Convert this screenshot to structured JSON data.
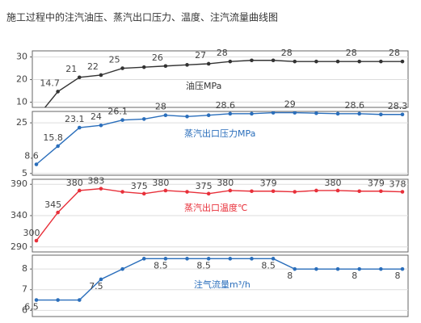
{
  "title": "施工过程中的注汽油压、蒸汽出口压力、温度、注汽流量曲线图",
  "chart_data": [
    {
      "type": "line",
      "ylim": [
        7.7,
        32.7
      ],
      "yticks": [
        10,
        20,
        30
      ],
      "grid": true,
      "series": [
        {
          "name": "油压MPa",
          "color": "#333333",
          "values": [
            3,
            14.7,
            21,
            22,
            25,
            25.5,
            26,
            26.5,
            27,
            28,
            28.5,
            28.5,
            28,
            28,
            28,
            28,
            28,
            28
          ],
          "value_labels": [
            null,
            "14.7",
            "21",
            "22",
            "25",
            null,
            "26",
            null,
            "27",
            "28",
            null,
            null,
            "28",
            null,
            null,
            "28",
            null,
            "28"
          ]
        }
      ]
    },
    {
      "type": "line",
      "ylim": [
        4.3,
        29.5
      ],
      "yticks": [
        5,
        25
      ],
      "grid": true,
      "series": [
        {
          "name": "蒸汽出口压力MPa",
          "color": "#2a6ebb",
          "values": [
            8.6,
            15.8,
            23.1,
            24,
            26.1,
            26.5,
            28,
            27.5,
            28,
            28.6,
            28.6,
            29,
            29,
            28.8,
            28.6,
            28.6,
            28.3,
            28.3
          ],
          "value_labels": [
            "8.6",
            "15.8",
            "23.1",
            "24",
            "26.1",
            null,
            "28",
            null,
            null,
            "28.6",
            null,
            null,
            "29",
            null,
            null,
            "28.6",
            null,
            "28.3"
          ]
        }
      ]
    },
    {
      "type": "line",
      "ylim": [
        282,
        398
      ],
      "yticks": [
        290,
        340,
        390
      ],
      "grid": true,
      "series": [
        {
          "name": "蒸汽出口温度℃",
          "color": "#e8303a",
          "values": [
            300,
            345,
            380,
            383,
            378,
            375,
            380,
            378,
            375,
            380,
            379,
            379,
            378,
            380,
            380,
            379,
            379,
            378
          ],
          "value_labels": [
            "300",
            "345",
            "380",
            "383",
            null,
            "375",
            "380",
            null,
            "375",
            "380",
            null,
            "379",
            null,
            null,
            "380",
            null,
            "379",
            "378"
          ]
        }
      ]
    },
    {
      "type": "line",
      "ylim": [
        5.7,
        8.67
      ],
      "yticks": [
        6,
        7,
        8
      ],
      "grid": true,
      "series": [
        {
          "name": "注气流量m³/h",
          "color": "#2a6ebb",
          "values": [
            6.5,
            6.5,
            6.5,
            7.5,
            8,
            8.5,
            8.5,
            8.5,
            8.5,
            8.5,
            8.5,
            8.5,
            8,
            8,
            8,
            8,
            8,
            8
          ],
          "value_labels": [
            "6.5",
            null,
            null,
            "7.5",
            null,
            null,
            "8.5",
            null,
            "8.5",
            null,
            null,
            "8.5",
            "8",
            null,
            null,
            "8",
            null,
            "8"
          ]
        }
      ]
    }
  ]
}
